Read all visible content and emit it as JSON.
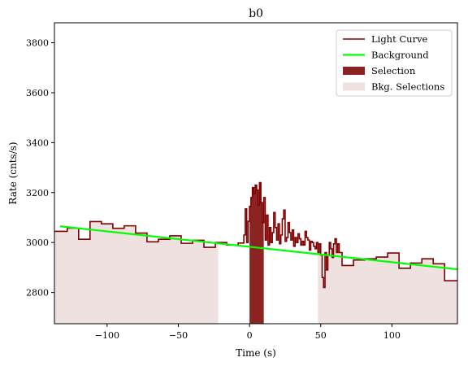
{
  "chart_data": {
    "type": "line",
    "title": "b0",
    "xlabel": "Time (s)",
    "ylabel": "Rate (cnts/s)",
    "xlim": [
      -137,
      146
    ],
    "ylim": [
      2675,
      3880
    ],
    "xticks": [
      -100,
      -50,
      0,
      50,
      100
    ],
    "yticks": [
      2800,
      3000,
      3200,
      3400,
      3600,
      3800
    ],
    "grid": false,
    "legend_position": "top-right",
    "colors": {
      "light_curve": "#800000",
      "background": "#00ff00",
      "selection": "#8b2323",
      "bkg_selection": "#f0e1e1"
    },
    "series": [
      {
        "name": "Light Curve",
        "kind": "step",
        "points": [
          [
            -137,
            3045
          ],
          [
            -128,
            3058
          ],
          [
            -120,
            3013
          ],
          [
            -112,
            3084
          ],
          [
            -104,
            3075
          ],
          [
            -96,
            3057
          ],
          [
            -88,
            3067
          ],
          [
            -80,
            3038
          ],
          [
            -72,
            3003
          ],
          [
            -64,
            3013
          ],
          [
            -56,
            3027
          ],
          [
            -48,
            2997
          ],
          [
            -40,
            3009
          ],
          [
            -32,
            2981
          ],
          [
            -24,
            3000
          ],
          [
            -16,
            2990
          ],
          [
            -8,
            2998
          ],
          [
            -4,
            3030
          ],
          [
            -3,
            3135
          ],
          [
            -2,
            3000
          ],
          [
            -1,
            3085
          ],
          [
            0,
            3145
          ],
          [
            1,
            3180
          ],
          [
            2,
            3220
          ],
          [
            3,
            3195
          ],
          [
            4,
            3230
          ],
          [
            5,
            3210
          ],
          [
            6,
            3150
          ],
          [
            7,
            3240
          ],
          [
            8,
            3160
          ],
          [
            9,
            3080
          ],
          [
            10,
            3180
          ],
          [
            11,
            3010
          ],
          [
            12,
            3110
          ],
          [
            13,
            2990
          ],
          [
            14,
            3060
          ],
          [
            15,
            3000
          ],
          [
            16,
            3040
          ],
          [
            17,
            3120
          ],
          [
            18,
            3060
          ],
          [
            19,
            3010
          ],
          [
            20,
            3075
          ],
          [
            21,
            2995
          ],
          [
            22,
            3030
          ],
          [
            23,
            3095
          ],
          [
            24,
            3130
          ],
          [
            25,
            3005
          ],
          [
            26,
            3020
          ],
          [
            27,
            3080
          ],
          [
            28,
            3040
          ],
          [
            29,
            3010
          ],
          [
            30,
            3050
          ],
          [
            31,
            2985
          ],
          [
            32,
            3020
          ],
          [
            33,
            3000
          ],
          [
            34,
            3035
          ],
          [
            35,
            3015
          ],
          [
            36,
            2990
          ],
          [
            37,
            3005
          ],
          [
            38,
            2990
          ],
          [
            39,
            3045
          ],
          [
            40,
            3020
          ],
          [
            41,
            3010
          ],
          [
            42,
            2970
          ],
          [
            43,
            3005
          ],
          [
            44,
            3000
          ],
          [
            45,
            2985
          ],
          [
            46,
            2975
          ],
          [
            47,
            3000
          ],
          [
            48,
            2960
          ],
          [
            49,
            2995
          ],
          [
            50,
            2950
          ],
          [
            51,
            2860
          ],
          [
            52,
            2820
          ],
          [
            53,
            2960
          ],
          [
            54,
            2890
          ],
          [
            55,
            2950
          ],
          [
            56,
            3000
          ],
          [
            57,
            2975
          ],
          [
            58,
            2940
          ],
          [
            59,
            2995
          ],
          [
            60,
            3015
          ],
          [
            61,
            2960
          ],
          [
            62,
            2995
          ],
          [
            63,
            2960
          ],
          [
            65,
            2908
          ],
          [
            73,
            2930
          ],
          [
            81,
            2935
          ],
          [
            89,
            2942
          ],
          [
            97,
            2958
          ],
          [
            105,
            2897
          ],
          [
            113,
            2918
          ],
          [
            121,
            2935
          ],
          [
            129,
            2915
          ],
          [
            137,
            2847
          ],
          [
            146,
            2938
          ]
        ]
      },
      {
        "name": "Background",
        "kind": "line",
        "points": [
          [
            -133,
            3065
          ],
          [
            146,
            2893
          ]
        ]
      },
      {
        "name": "Selection",
        "kind": "band",
        "range": [
          0,
          10
        ]
      },
      {
        "name": "Bkg. Selections",
        "kind": "band",
        "ranges": [
          [
            -137,
            -22
          ],
          [
            48,
            146
          ]
        ]
      }
    ]
  }
}
